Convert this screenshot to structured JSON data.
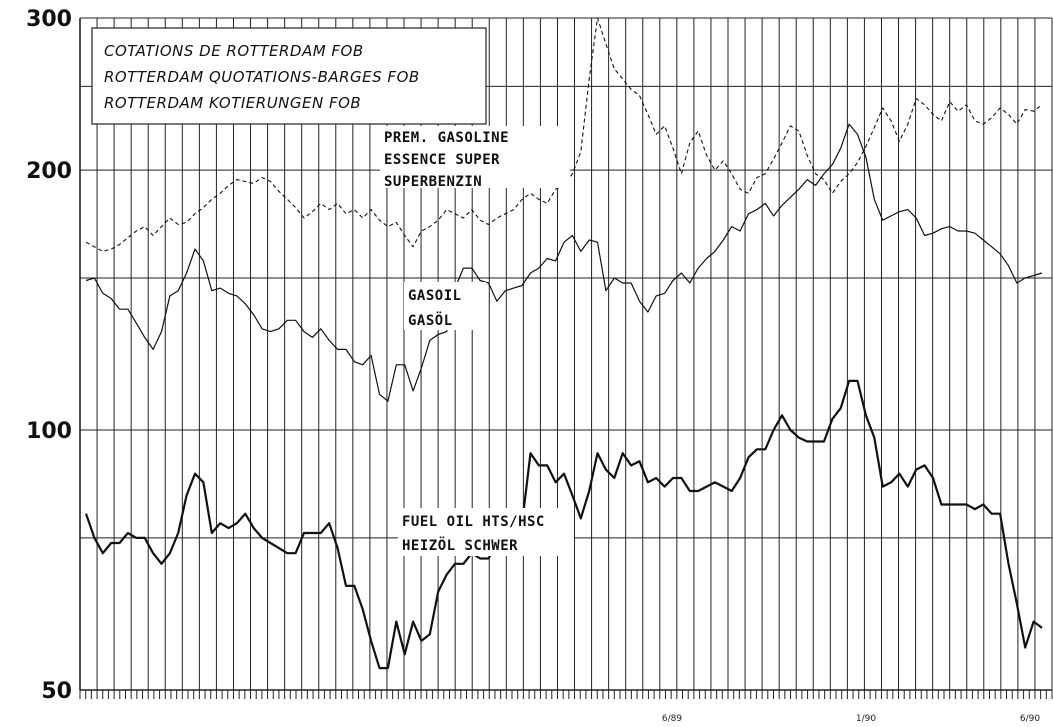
{
  "chart_data": {
    "type": "line",
    "title_lines": [
      "COTATIONS DE ROTTERDAM FOB",
      "ROTTERDAM QUOTATIONS-BARGES FOB",
      "ROTTERDAM KOTIERUNGEN FOB"
    ],
    "y_scale": "log",
    "ylim": [
      50,
      300
    ],
    "y_ticks": [
      "300",
      "200",
      "100",
      "50"
    ],
    "x_tick_labels": [
      "6/89",
      "1/90",
      "6/90"
    ],
    "grid": true,
    "series": [
      {
        "name": "PREM. GASOLINE",
        "label_lines": [
          "PREM. GASOLINE",
          "ESSENCE SUPER",
          "SUPERBENZIN"
        ],
        "style": "dashed",
        "values": [
          165,
          163,
          161,
          162,
          164,
          167,
          170,
          172,
          168,
          172,
          176,
          173,
          174,
          178,
          181,
          185,
          188,
          192,
          195,
          194,
          193,
          196,
          194,
          189,
          185,
          181,
          176,
          179,
          183,
          180,
          183,
          178,
          180,
          176,
          180,
          175,
          172,
          174,
          168,
          163,
          170,
          172,
          175,
          180,
          178,
          176,
          180,
          175,
          173,
          176,
          178,
          180,
          185,
          188,
          185,
          183,
          190,
          192,
          198,
          210,
          255,
          300,
          280,
          262,
          255,
          248,
          244,
          232,
          220,
          225,
          212,
          198,
          215,
          222,
          208,
          200,
          205,
          198,
          190,
          188,
          196,
          198,
          206,
          215,
          225,
          222,
          208,
          198,
          195,
          188,
          194,
          198,
          204,
          213,
          224,
          236,
          228,
          216,
          226,
          242,
          238,
          232,
          228,
          240,
          234,
          238,
          228,
          226,
          230,
          236,
          232,
          226,
          235,
          234,
          238
        ]
      },
      {
        "name": "GASOIL",
        "label_lines": [
          "GASOIL",
          "GASÖL"
        ],
        "style": "solid",
        "values": [
          149,
          150,
          144,
          142,
          138,
          138,
          133,
          128,
          124,
          130,
          143,
          145,
          152,
          162,
          157,
          145,
          146,
          144,
          143,
          140,
          136,
          131,
          130,
          131,
          134,
          134,
          130,
          128,
          131,
          127,
          124,
          124,
          120,
          119,
          122,
          110,
          108,
          119,
          119,
          111,
          118,
          127,
          129,
          130,
          146,
          154,
          154,
          149,
          148,
          141,
          145,
          146,
          147,
          152,
          154,
          158,
          157,
          165,
          168,
          161,
          166,
          165,
          145,
          150,
          148,
          148,
          141,
          137,
          143,
          144,
          149,
          152,
          148,
          154,
          158,
          161,
          166,
          172,
          170,
          178,
          180,
          183,
          177,
          182,
          186,
          190,
          195,
          192,
          198,
          203,
          212,
          226,
          220,
          207,
          185,
          175,
          177,
          179,
          180,
          176,
          168,
          169,
          171,
          172,
          170,
          170,
          169,
          166,
          163,
          160,
          155,
          148,
          150,
          151,
          152
        ]
      },
      {
        "name": "FUEL OIL HTS/HSC",
        "label_lines": [
          "FUEL OIL HTS/HSC",
          "HEIZÖL SCHWER"
        ],
        "style": "solid-heavy",
        "values": [
          80,
          75,
          72,
          74,
          74,
          76,
          75,
          75,
          72,
          70,
          72,
          76,
          84,
          89,
          87,
          76,
          78,
          77,
          78,
          80,
          77,
          75,
          74,
          73,
          72,
          72,
          76,
          76,
          76,
          78,
          73,
          66,
          66,
          62,
          57,
          53,
          53,
          60,
          55,
          60,
          57,
          58,
          65,
          68,
          70,
          70,
          72,
          71,
          71,
          74,
          73,
          76,
          78,
          94,
          91,
          91,
          87,
          89,
          84,
          79,
          85,
          94,
          90,
          88,
          94,
          91,
          92,
          87,
          88,
          86,
          88,
          88,
          85,
          85,
          86,
          87,
          86,
          85,
          88,
          93,
          95,
          95,
          100,
          104,
          100,
          98,
          97,
          97,
          97,
          103,
          106,
          114,
          114,
          104,
          98,
          86,
          87,
          89,
          86,
          90,
          91,
          88,
          82,
          82,
          82,
          82,
          81,
          82,
          80,
          80,
          70,
          63,
          56,
          60,
          59
        ]
      }
    ]
  }
}
